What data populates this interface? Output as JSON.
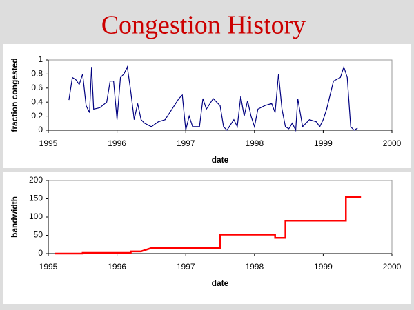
{
  "title": "Congestion History",
  "chart_data": [
    {
      "type": "line",
      "xlabel": "date",
      "ylabel": "fraction congested",
      "x": [
        1995.3,
        1995.35,
        1995.4,
        1995.45,
        1995.5,
        1995.55,
        1995.6,
        1995.63,
        1995.66,
        1995.75,
        1995.85,
        1995.9,
        1995.95,
        1996.0,
        1996.05,
        1996.1,
        1996.15,
        1996.2,
        1996.25,
        1996.3,
        1996.35,
        1996.4,
        1996.5,
        1996.6,
        1996.7,
        1996.8,
        1996.9,
        1996.95,
        1997.0,
        1997.05,
        1997.1,
        1997.2,
        1997.25,
        1997.3,
        1997.4,
        1997.5,
        1997.55,
        1997.6,
        1997.7,
        1997.75,
        1997.8,
        1997.85,
        1997.9,
        1997.95,
        1998.0,
        1998.05,
        1998.15,
        1998.25,
        1998.3,
        1998.35,
        1998.4,
        1998.45,
        1998.5,
        1998.55,
        1998.6,
        1998.63,
        1998.7,
        1998.8,
        1998.9,
        1998.95,
        1999.0,
        1999.05,
        1999.15,
        1999.25,
        1999.3,
        1999.35,
        1999.4,
        1999.45,
        1999.5
      ],
      "series": [
        {
          "color": "#000080",
          "values": [
            0.43,
            0.75,
            0.72,
            0.65,
            0.8,
            0.35,
            0.25,
            0.9,
            0.3,
            0.32,
            0.4,
            0.7,
            0.7,
            0.15,
            0.75,
            0.8,
            0.9,
            0.55,
            0.15,
            0.38,
            0.15,
            0.1,
            0.05,
            0.12,
            0.15,
            0.3,
            0.45,
            0.5,
            0.0,
            0.2,
            0.05,
            0.05,
            0.45,
            0.3,
            0.45,
            0.35,
            0.05,
            0.0,
            0.15,
            0.05,
            0.48,
            0.2,
            0.42,
            0.2,
            0.05,
            0.3,
            0.35,
            0.38,
            0.25,
            0.8,
            0.3,
            0.05,
            0.02,
            0.1,
            0.0,
            0.45,
            0.05,
            0.15,
            0.12,
            0.05,
            0.15,
            0.3,
            0.7,
            0.75,
            0.9,
            0.75,
            0.05,
            0.0,
            0.03
          ]
        }
      ],
      "xlim": [
        1995,
        2000
      ],
      "xticks": [
        1995,
        1996,
        1997,
        1998,
        1999,
        2000
      ],
      "ylim": [
        0,
        1
      ],
      "yticks": [
        0,
        0.2,
        0.4,
        0.6,
        0.8,
        1
      ]
    },
    {
      "type": "line",
      "xlabel": "date",
      "ylabel": "bandwidth",
      "x": [
        1995.1,
        1995.5,
        1995.5,
        1996.2,
        1996.2,
        1996.35,
        1996.5,
        1997.5,
        1997.5,
        1998.3,
        1998.3,
        1998.45,
        1998.45,
        1999.33,
        1999.33,
        1999.55
      ],
      "series": [
        {
          "color": "#ff0000",
          "values": [
            0,
            0,
            2,
            2,
            6,
            6,
            15,
            15,
            52,
            52,
            43,
            43,
            90,
            90,
            155,
            155
          ]
        }
      ],
      "xlim": [
        1995,
        2000
      ],
      "xticks": [
        1995,
        1996,
        1997,
        1998,
        1999,
        2000
      ],
      "ylim": [
        0,
        200
      ],
      "yticks": [
        0,
        50,
        100,
        150,
        200
      ]
    }
  ]
}
